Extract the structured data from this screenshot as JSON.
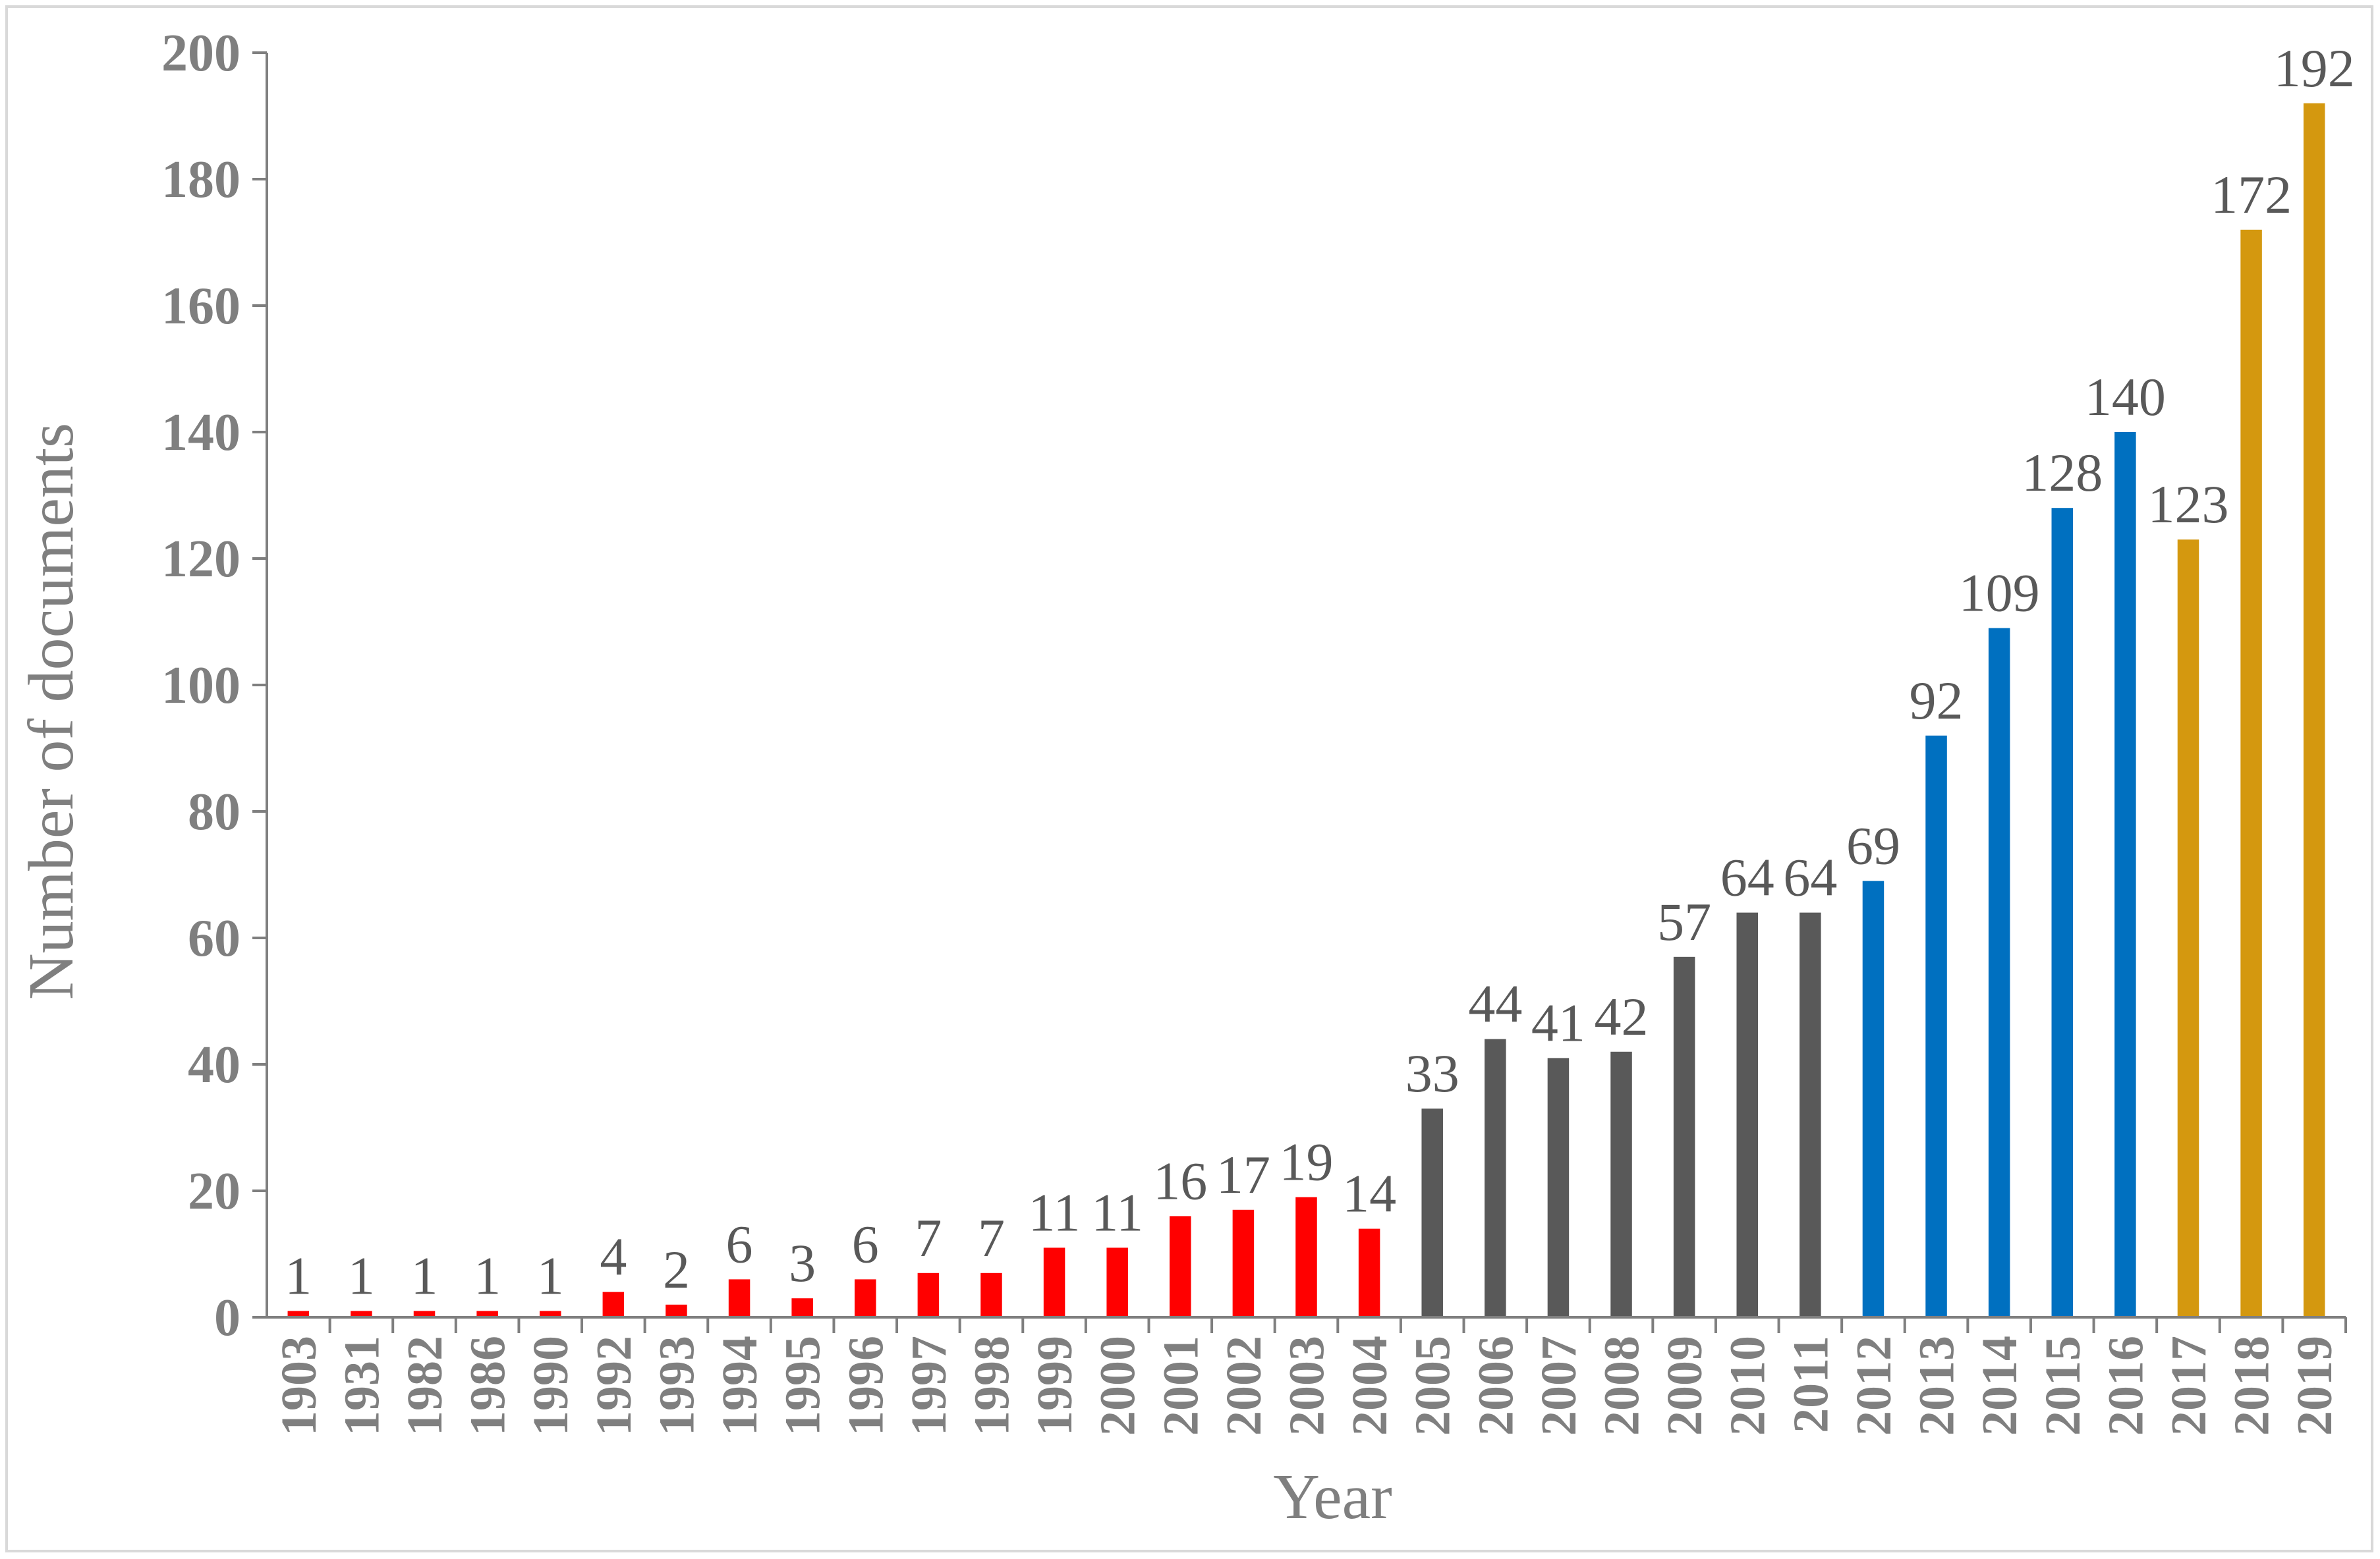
{
  "chart_data": {
    "type": "bar",
    "title": "",
    "xlabel": "Year",
    "ylabel": "Number of documents",
    "ylim": [
      0,
      200
    ],
    "yticks": [
      0,
      20,
      40,
      60,
      80,
      100,
      120,
      140,
      160,
      180,
      200
    ],
    "grid": false,
    "legend": "none",
    "categories": [
      "1903",
      "1931",
      "1982",
      "1986",
      "1990",
      "1992",
      "1993",
      "1994",
      "1995",
      "1996",
      "1997",
      "1998",
      "1999",
      "2000",
      "2001",
      "2002",
      "2003",
      "2004",
      "2005",
      "2006",
      "2007",
      "2008",
      "2009",
      "2010",
      "2011",
      "2012",
      "2013",
      "2014",
      "2015",
      "2016",
      "2017",
      "2018",
      "2019"
    ],
    "values": [
      1,
      1,
      1,
      1,
      1,
      4,
      2,
      6,
      3,
      6,
      7,
      7,
      11,
      11,
      16,
      17,
      19,
      14,
      33,
      44,
      41,
      42,
      57,
      64,
      64,
      69,
      92,
      109,
      128,
      140,
      123,
      172,
      192
    ],
    "data_labels": [
      "1",
      "1",
      "1",
      "1",
      "1",
      "4",
      "2",
      "6",
      "3",
      "6",
      "7",
      "7",
      "11",
      "11",
      "16",
      "17",
      "19",
      "14",
      "33",
      "44",
      "41",
      "42",
      "57",
      "64",
      "64",
      "69",
      "92",
      "109",
      "128",
      "140",
      "123",
      "172",
      "192"
    ],
    "bar_colors": [
      "#ff0000",
      "#ff0000",
      "#ff0000",
      "#ff0000",
      "#ff0000",
      "#ff0000",
      "#ff0000",
      "#ff0000",
      "#ff0000",
      "#ff0000",
      "#ff0000",
      "#ff0000",
      "#ff0000",
      "#ff0000",
      "#ff0000",
      "#ff0000",
      "#ff0000",
      "#ff0000",
      "#595959",
      "#595959",
      "#595959",
      "#595959",
      "#595959",
      "#595959",
      "#595959",
      "#0070c0",
      "#0070c0",
      "#0070c0",
      "#0070c0",
      "#0070c0",
      "#d4980f",
      "#d4980f",
      "#d4980f"
    ],
    "axis_color": "#7f7f7f",
    "label_color": "#595959"
  }
}
